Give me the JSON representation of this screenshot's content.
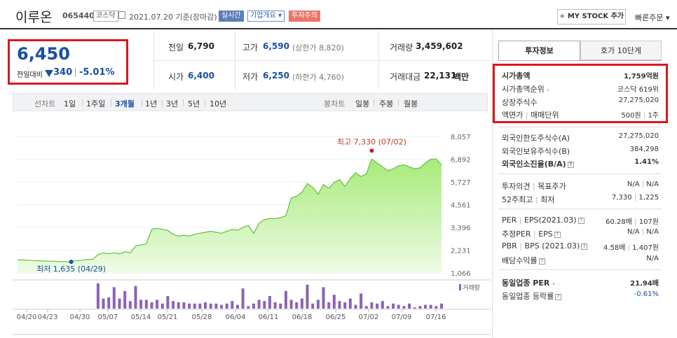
{
  "header": {
    "name": "이루온",
    "code": "065440",
    "market": "코스닥",
    "date": "2021.07.20 기준(장마감)",
    "realtime": "실시간",
    "overview": "기업개요 ▾",
    "warning": "투자주의",
    "mystock_plus": "+",
    "mystock": "MY STOCK 추가",
    "quick_order": "빠른주문 ▾"
  },
  "price": {
    "current": "6,450",
    "change_label": "전일대비",
    "change": "340",
    "change_pct": "-5.01%",
    "direction": "down",
    "color": "#1a4fa3"
  },
  "quote": {
    "prev_label": "전일",
    "prev": "6,790",
    "high_label": "고가",
    "high": "6,590",
    "high_limit": "(상한가 8,820)",
    "volume_label": "거래량",
    "volume": "3,459,602",
    "open_label": "시가",
    "open": "6,400",
    "low_label": "저가",
    "low": "6,250",
    "low_limit": "(하한가 4,760)",
    "amount_label": "거래대금",
    "amount": "22,131",
    "amount_unit": "백만"
  },
  "periods": {
    "label": "선차트",
    "items": [
      "1일",
      "1주일",
      "3개월",
      "1년",
      "3년",
      "5년",
      "10년"
    ],
    "active": "3개월",
    "candle_label": "봉차트",
    "candle_items": [
      "일봉",
      "주봉",
      "월봉"
    ]
  },
  "tabs": [
    "투자정보",
    "호가 10단계"
  ],
  "invest": {
    "g1": [
      {
        "label": "시가총액",
        "value": "1,759억원",
        "bold": true
      },
      {
        "label": "시가총액순위",
        "arrow": "›",
        "value": "코스닥 619위"
      },
      {
        "label": "상장주식수",
        "value": "27,275,020"
      },
      {
        "label": "액면가",
        "label2": "매매단위",
        "value": "500원",
        "value2": "1주"
      }
    ],
    "g2": [
      {
        "label": "외국인한도주식수(A)",
        "value": "27,275,020"
      },
      {
        "label": "외국인보유주식수(B)",
        "value": "384,298"
      },
      {
        "label": "외국인소진율(B/A)",
        "q": "?",
        "value": "1.41%",
        "bold": true
      }
    ],
    "g3": [
      {
        "label": "투자의견",
        "label2": "목표주가",
        "value": "N/A",
        "value2": "N/A"
      },
      {
        "label": "52주최고",
        "label2": "최저",
        "value": "7,330",
        "value2": "1,225"
      }
    ],
    "g4": [
      {
        "label": "PER",
        "label2": "EPS(2021.03)",
        "q": "?",
        "value": "60.28배",
        "value2": "107원"
      },
      {
        "label": "추정PER",
        "label2": "EPS",
        "q": "?",
        "value": "N/A",
        "value2": "N/A"
      },
      {
        "label": "PBR",
        "label2": "BPS (2021.03)",
        "q": "?",
        "value": "4.58배",
        "value2": "1,407원"
      },
      {
        "label": "배당수익률",
        "q": "?",
        "value": "N/A"
      }
    ],
    "g5": [
      {
        "label": "동일업종 PER",
        "arrow": "›",
        "value": "21.94배",
        "bold": true
      },
      {
        "label": "동일업종 등락률",
        "q": "?",
        "value": "-0.61%",
        "blue": true
      }
    ]
  },
  "chart_data": {
    "type": "area",
    "yticks": [
      "8,057",
      "6,892",
      "5,727",
      "4,561",
      "3,396",
      "2,231",
      "1,066"
    ],
    "ylim": [
      1066,
      8057
    ],
    "xticks": [
      "04/20",
      "04/23",
      "04/30",
      "05/07",
      "05/14",
      "05/21",
      "05/28",
      "06/04",
      "06/11",
      "06/18",
      "06/25",
      "07/02",
      "07/09",
      "07/16"
    ],
    "high_label": "최고 7,330 (07/02)",
    "low_label": "최저 1,635 (04/29)",
    "volume_label": "거래량",
    "price": [
      1740,
      1730,
      1720,
      1700,
      1690,
      1680,
      1670,
      1660,
      1650,
      1640,
      1635,
      1700,
      1720,
      1760,
      1760,
      2000,
      2100,
      2050,
      2100,
      2050,
      2150,
      2100,
      2450,
      2500,
      2550,
      3300,
      3350,
      3300,
      3250,
      3050,
      2950,
      3000,
      2950,
      3050,
      3100,
      3150,
      3200,
      3150,
      3100,
      3200,
      3300,
      3250,
      3400,
      3500,
      3100,
      3600,
      3800,
      3850,
      3850,
      3900,
      4000,
      4900,
      5000,
      5200,
      5650,
      5450,
      5100,
      5600,
      5400,
      5700,
      5850,
      5500,
      5900,
      6200,
      6000,
      6150,
      6900,
      6700,
      6500,
      6300,
      6400,
      6550,
      6600,
      6500,
      6400,
      6450,
      6700,
      6900,
      6900,
      6600
    ],
    "volume": [
      0,
      0,
      0,
      0,
      0,
      0,
      0,
      0,
      0,
      0,
      0,
      0,
      0,
      0,
      0,
      1.0,
      0.4,
      0.45,
      0.85,
      0.4,
      0.7,
      0.3,
      0.9,
      0.35,
      0.35,
      0.25,
      0.35,
      0.2,
      0.5,
      0.3,
      0.25,
      0.25,
      0.2,
      0.2,
      0.2,
      0.25,
      0.2,
      0.2,
      0.15,
      0.2,
      0.3,
      0.15,
      0.8,
      0.1,
      0.2,
      0.35,
      0.3,
      0.5,
      0.25,
      0.2,
      0.7,
      0.35,
      0.25,
      0.4,
      0.95,
      0.2,
      0.35,
      0.85,
      0.25,
      0.55,
      0.3,
      0.25,
      0.4,
      0.15,
      0.6,
      0.1,
      0.25,
      0.2,
      0.3,
      0.1,
      0.2,
      0.15,
      0.1,
      0.2,
      0.05,
      0.1,
      0.15,
      0.15,
      0.1,
      0.2
    ]
  }
}
